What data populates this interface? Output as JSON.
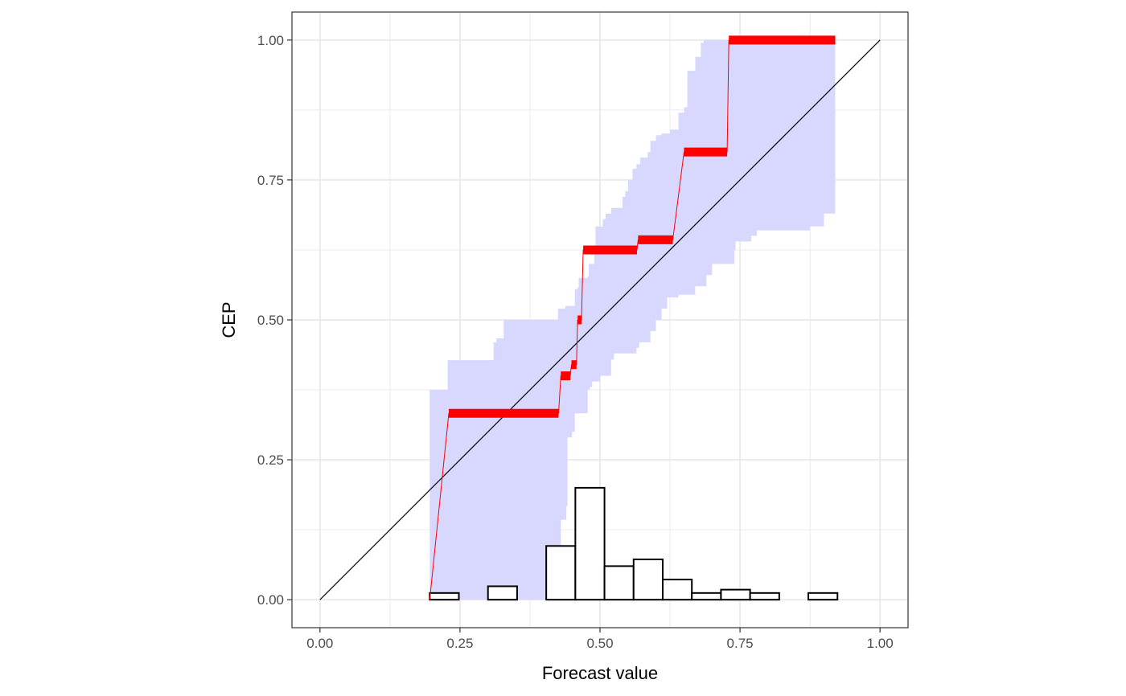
{
  "chart_data": {
    "type": "reliability-diagram",
    "xlabel": "Forecast value",
    "ylabel": "CEP",
    "xlim": [
      -0.05,
      1.05
    ],
    "ylim": [
      -0.05,
      1.05
    ],
    "x_ticks": [
      0.0,
      0.25,
      0.5,
      0.75,
      1.0
    ],
    "y_ticks": [
      0.0,
      0.25,
      0.5,
      0.75,
      1.0
    ],
    "x_tick_labels": [
      "0.00",
      "0.25",
      "0.50",
      "0.75",
      "1.00"
    ],
    "y_tick_labels": [
      "0.00",
      "0.25",
      "0.50",
      "0.75",
      "1.00"
    ],
    "grid": true,
    "aspect": "equal",
    "colors": {
      "band": "#d8d8ff",
      "cep": "#ff0000",
      "diagonal": "#000000",
      "histogram_edge": "#000000",
      "histogram_fill": "#ffffff",
      "panel_border": "#333333",
      "grid": "#ebebeb"
    },
    "diagonal": [
      [
        0,
        0
      ],
      [
        1,
        1
      ]
    ],
    "consistency_band": {
      "upper": [
        [
          0.196,
          0.375
        ],
        [
          0.228,
          0.428
        ],
        [
          0.31,
          0.46
        ],
        [
          0.315,
          0.467
        ],
        [
          0.325,
          0.467
        ],
        [
          0.328,
          0.5
        ],
        [
          0.42,
          0.5
        ],
        [
          0.425,
          0.52
        ],
        [
          0.432,
          0.52
        ],
        [
          0.438,
          0.525
        ],
        [
          0.452,
          0.525
        ],
        [
          0.455,
          0.555
        ],
        [
          0.46,
          0.558
        ],
        [
          0.462,
          0.575
        ],
        [
          0.478,
          0.578
        ],
        [
          0.48,
          0.6
        ],
        [
          0.49,
          0.62
        ],
        [
          0.492,
          0.667
        ],
        [
          0.5,
          0.667
        ],
        [
          0.505,
          0.68
        ],
        [
          0.51,
          0.69
        ],
        [
          0.52,
          0.7
        ],
        [
          0.53,
          0.7
        ],
        [
          0.54,
          0.72
        ],
        [
          0.545,
          0.73
        ],
        [
          0.55,
          0.75
        ],
        [
          0.558,
          0.77
        ],
        [
          0.565,
          0.778
        ],
        [
          0.572,
          0.79
        ],
        [
          0.585,
          0.8
        ],
        [
          0.59,
          0.82
        ],
        [
          0.6,
          0.83
        ],
        [
          0.61,
          0.833
        ],
        [
          0.625,
          0.84
        ],
        [
          0.64,
          0.87
        ],
        [
          0.65,
          0.88
        ],
        [
          0.655,
          0.88
        ],
        [
          0.656,
          0.945
        ],
        [
          0.67,
          0.97
        ],
        [
          0.68,
          0.995
        ],
        [
          0.685,
          1.0
        ],
        [
          0.92,
          1.0
        ]
      ],
      "lower": [
        [
          0.196,
          0.0
        ],
        [
          0.428,
          0.0
        ],
        [
          0.43,
          0.143
        ],
        [
          0.44,
          0.167
        ],
        [
          0.442,
          0.29
        ],
        [
          0.45,
          0.3
        ],
        [
          0.455,
          0.333
        ],
        [
          0.478,
          0.375
        ],
        [
          0.482,
          0.38
        ],
        [
          0.486,
          0.39
        ],
        [
          0.5,
          0.4
        ],
        [
          0.52,
          0.429
        ],
        [
          0.525,
          0.44
        ],
        [
          0.563,
          0.44
        ],
        [
          0.565,
          0.45
        ],
        [
          0.568,
          0.45
        ],
        [
          0.57,
          0.46
        ],
        [
          0.59,
          0.48
        ],
        [
          0.6,
          0.5
        ],
        [
          0.61,
          0.52
        ],
        [
          0.62,
          0.54
        ],
        [
          0.64,
          0.545
        ],
        [
          0.67,
          0.56
        ],
        [
          0.69,
          0.58
        ],
        [
          0.7,
          0.6
        ],
        [
          0.74,
          0.625
        ],
        [
          0.742,
          0.64
        ],
        [
          0.77,
          0.65
        ],
        [
          0.78,
          0.66
        ],
        [
          0.875,
          0.667
        ],
        [
          0.9,
          0.69
        ],
        [
          0.92,
          0.714
        ]
      ]
    },
    "cep_steps": [
      [
        0.196,
        0.0
      ],
      [
        0.23,
        0.333
      ],
      [
        0.426,
        0.333
      ],
      [
        0.43,
        0.4
      ],
      [
        0.447,
        0.4
      ],
      [
        0.449,
        0.42
      ],
      [
        0.458,
        0.42
      ],
      [
        0.46,
        0.5
      ],
      [
        0.467,
        0.5
      ],
      [
        0.47,
        0.625
      ],
      [
        0.566,
        0.625
      ],
      [
        0.568,
        0.643
      ],
      [
        0.63,
        0.643
      ],
      [
        0.65,
        0.8
      ],
      [
        0.727,
        0.8
      ],
      [
        0.73,
        1.0
      ],
      [
        0.92,
        1.0
      ]
    ],
    "histogram": {
      "bin_width": 0.052,
      "bins": [
        {
          "x_start": 0.196,
          "value": 0.012
        },
        {
          "x_start": 0.248,
          "value": 0.0
        },
        {
          "x_start": 0.3,
          "value": 0.024
        },
        {
          "x_start": 0.352,
          "value": 0.0
        },
        {
          "x_start": 0.404,
          "value": 0.096
        },
        {
          "x_start": 0.456,
          "value": 0.2
        },
        {
          "x_start": 0.508,
          "value": 0.06
        },
        {
          "x_start": 0.56,
          "value": 0.072
        },
        {
          "x_start": 0.612,
          "value": 0.036
        },
        {
          "x_start": 0.664,
          "value": 0.012
        },
        {
          "x_start": 0.716,
          "value": 0.018
        },
        {
          "x_start": 0.768,
          "value": 0.012
        },
        {
          "x_start": 0.82,
          "value": 0.0
        },
        {
          "x_start": 0.872,
          "value": 0.012
        }
      ]
    }
  }
}
